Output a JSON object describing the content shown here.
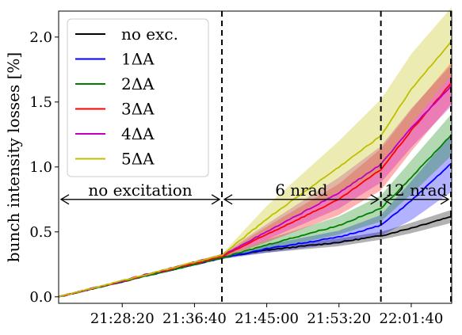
{
  "chart_data": {
    "type": "line",
    "ylabel": "bunch intensity losses [%]",
    "xlabel": "",
    "time_start": "21:21:00",
    "time_end": "22:06:20",
    "ylim": [
      -0.05,
      2.2
    ],
    "xticks": [
      "21:28:20",
      "21:36:40",
      "21:45:00",
      "21:53:20",
      "22:01:40"
    ],
    "yticks": [
      "0.0",
      "0.5",
      "1.0",
      "1.5",
      "2.0"
    ],
    "grid": false,
    "legend_position": "top-left",
    "phase_boundaries": [
      "21:39:50",
      "21:58:10"
    ],
    "annotations": [
      {
        "label": "no excitation",
        "from": "21:21:00",
        "to": "21:39:50"
      },
      {
        "label": "6 nrad",
        "from": "21:39:50",
        "to": "21:58:10"
      },
      {
        "label": "12 nrad",
        "from": "21:58:10",
        "to": "22:06:20"
      }
    ],
    "series": [
      {
        "name": "no exc.",
        "color": "#000000",
        "points": [
          [
            "21:21:00",
            0.0
          ],
          [
            "21:39:50",
            0.3
          ],
          [
            "21:45:00",
            0.36
          ],
          [
            "21:53:20",
            0.42
          ],
          [
            "21:58:10",
            0.47
          ],
          [
            "22:01:40",
            0.53
          ],
          [
            "22:06:20",
            0.62
          ]
        ],
        "band": [
          0.0,
          0.0,
          0.02,
          0.03,
          0.03,
          0.04,
          0.05
        ]
      },
      {
        "name": "1ΔA",
        "color": "#0000ff",
        "points": [
          [
            "21:21:00",
            0.0
          ],
          [
            "21:39:50",
            0.3
          ],
          [
            "21:45:00",
            0.37
          ],
          [
            "21:53:20",
            0.46
          ],
          [
            "21:58:10",
            0.55
          ],
          [
            "22:01:40",
            0.74
          ],
          [
            "22:06:20",
            1.03
          ]
        ],
        "band": [
          0.0,
          0.01,
          0.03,
          0.05,
          0.08,
          0.15,
          0.22
        ]
      },
      {
        "name": "2ΔA",
        "color": "#008000",
        "points": [
          [
            "21:21:00",
            0.0
          ],
          [
            "21:39:50",
            0.3
          ],
          [
            "21:45:00",
            0.4
          ],
          [
            "21:53:20",
            0.55
          ],
          [
            "21:58:10",
            0.68
          ],
          [
            "22:01:40",
            0.92
          ],
          [
            "22:06:20",
            1.25
          ]
        ],
        "band": [
          0.0,
          0.01,
          0.04,
          0.07,
          0.1,
          0.13,
          0.16
        ]
      },
      {
        "name": "3ΔA",
        "color": "#ff0000",
        "points": [
          [
            "21:21:00",
            0.0
          ],
          [
            "21:39:50",
            0.31
          ],
          [
            "21:45:00",
            0.48
          ],
          [
            "21:53:20",
            0.75
          ],
          [
            "21:58:10",
            0.98
          ],
          [
            "22:01:40",
            1.28
          ],
          [
            "22:06:20",
            1.65
          ]
        ],
        "band": [
          0.0,
          0.01,
          0.06,
          0.12,
          0.16,
          0.16,
          0.16
        ]
      },
      {
        "name": "4ΔA",
        "color": "#bf00bf",
        "points": [
          [
            "21:21:00",
            0.0
          ],
          [
            "21:39:50",
            0.32
          ],
          [
            "21:45:00",
            0.5
          ],
          [
            "21:53:20",
            0.8
          ],
          [
            "21:58:10",
            1.02
          ],
          [
            "22:01:40",
            1.3
          ],
          [
            "22:06:20",
            1.63
          ]
        ],
        "band": [
          0.0,
          0.01,
          0.06,
          0.12,
          0.14,
          0.15,
          0.16
        ]
      },
      {
        "name": "5ΔA",
        "color": "#bfbf00",
        "points": [
          [
            "21:21:00",
            0.0
          ],
          [
            "21:39:50",
            0.32
          ],
          [
            "21:45:00",
            0.6
          ],
          [
            "21:53:20",
            1.0
          ],
          [
            "21:58:10",
            1.24
          ],
          [
            "22:01:40",
            1.6
          ],
          [
            "22:06:20",
            1.97
          ]
        ],
        "band": [
          0.0,
          0.01,
          0.1,
          0.2,
          0.28,
          0.27,
          0.26
        ]
      }
    ]
  }
}
